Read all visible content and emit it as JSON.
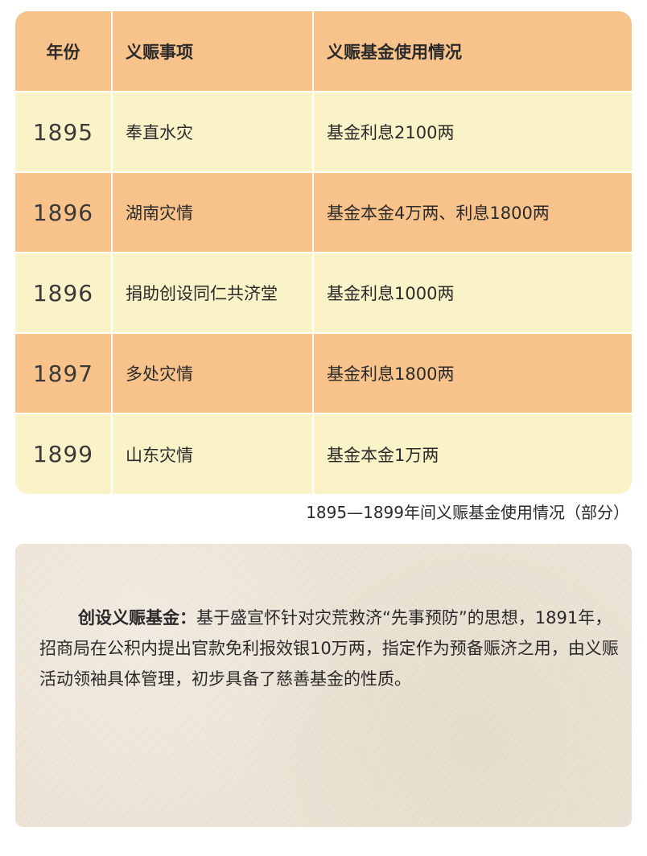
{
  "table": {
    "headers": {
      "year": "年份",
      "item": "义赈事项",
      "usage": "义赈基金使用情况"
    },
    "rows": [
      {
        "year": "1895",
        "item": "奉直水灾",
        "usage": "基金利息2100两"
      },
      {
        "year": "1896",
        "item": "湖南灾情",
        "usage": "基金本金4万两、利息1800两"
      },
      {
        "year": "1896",
        "item": "捐助创设同仁共济堂",
        "usage": "基金利息1000两"
      },
      {
        "year": "1897",
        "item": "多处灾情",
        "usage": "基金利息1800两"
      },
      {
        "year": "1899",
        "item": "山东灾情",
        "usage": "基金本金1万两"
      }
    ],
    "caption": "1895—1899年间义赈基金使用情况（部分）"
  },
  "note": {
    "title": "创设义赈基金：",
    "body": "基于盛宣怀针对灾荒救济“先事预防”的思想，1891年，招商局在公积内提出官款免利报效银10万两，指定作为预备赈济之用，由义赈活动领袖具体管理，初步具备了慈善基金的性质。"
  },
  "colors": {
    "header_row": "#f8c38b",
    "dark_row": "#f8c38b",
    "light_row": "#fbf3c8",
    "note_background": "#ece4d6"
  }
}
